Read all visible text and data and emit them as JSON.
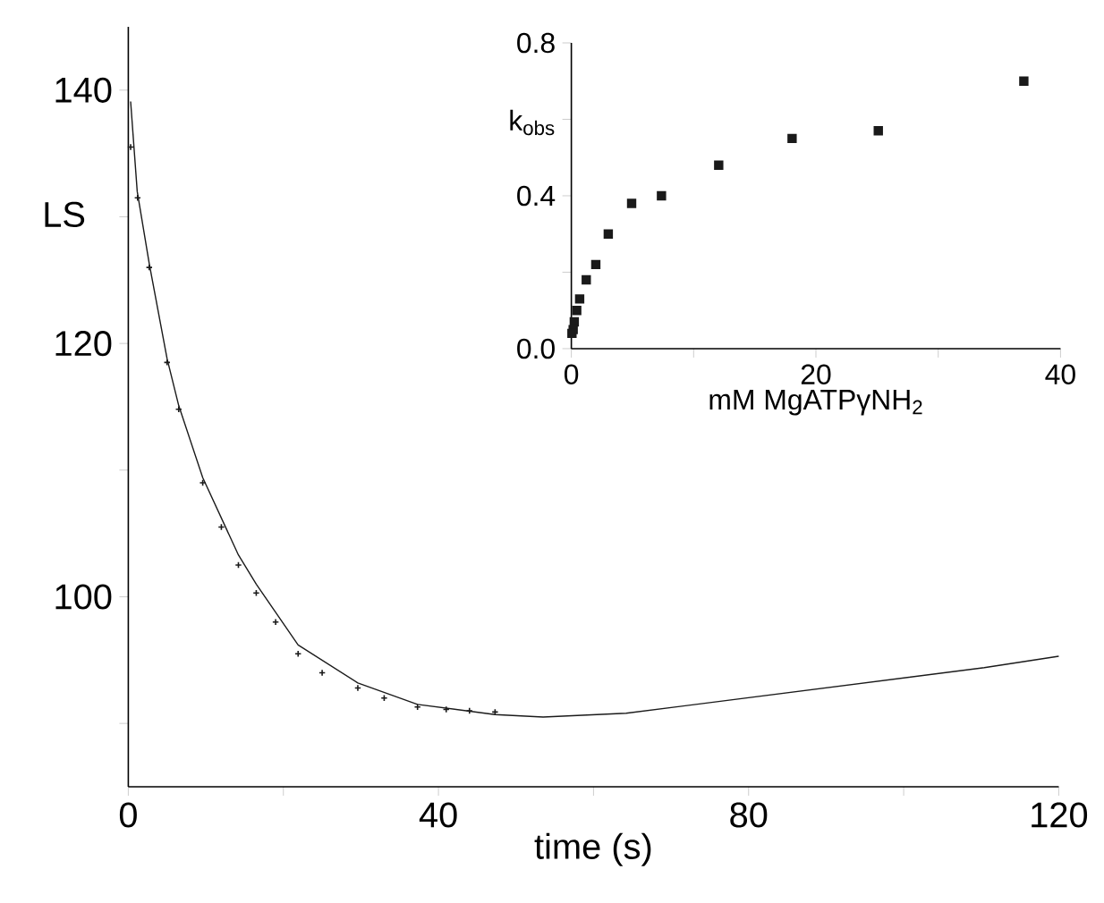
{
  "chart_data": [
    {
      "type": "line",
      "xlabel": "time (s)",
      "ylabel": "LS",
      "xlim": [
        0,
        120
      ],
      "ylim": [
        85,
        145
      ],
      "xticks": [
        0,
        {
          "value": 20,
          "label": null
        },
        40,
        {
          "value": 60,
          "label": null
        },
        80,
        {
          "value": 100,
          "label": null
        },
        120
      ],
      "yticks": [
        {
          "value": 90,
          "label": null
        },
        100,
        {
          "value": 110,
          "label": null
        },
        120,
        {
          "value": 130,
          "label": null
        },
        140
      ],
      "series": [
        {
          "type": "line",
          "color": "#1a1a1a",
          "x": [
            0.3,
            1.15,
            2.7,
            5.0,
            6.5,
            9.6,
            14.2,
            16.5,
            21.9,
            29.6,
            37.3,
            47.3,
            53.5,
            64.2,
            79.6,
            95,
            110.4,
            120
          ],
          "values": [
            139.1,
            132,
            126.3,
            118.8,
            115.1,
            109.4,
            103.3,
            101,
            96.2,
            93.2,
            91.5,
            90.7,
            90.5,
            90.8,
            92.0,
            93.2,
            94.4,
            95.3
          ]
        },
        {
          "type": "scatter",
          "marker": "cross",
          "color": "#1a1a1a",
          "x": [
            0.3,
            1.2,
            2.7,
            5.0,
            6.5,
            9.6,
            12,
            14.2,
            16.5,
            19,
            21.9,
            25,
            29.6,
            33,
            37.3,
            41,
            44,
            47.3
          ],
          "values": [
            135.5,
            131.5,
            126,
            118.5,
            114.8,
            109,
            105.5,
            102.5,
            100.3,
            98,
            95.5,
            94,
            92.8,
            92,
            91.3,
            91.1,
            91,
            90.9
          ]
        }
      ]
    },
    {
      "type": "scatter",
      "marker": "square",
      "xlabel": "mM MgATPγNH$_{2}$",
      "ylabel": "k$_{obs}$",
      "xlim": [
        0,
        40
      ],
      "ylim": [
        0,
        0.8
      ],
      "xticks": [
        0,
        {
          "value": 10,
          "label": null
        },
        20,
        {
          "value": 30,
          "label": null
        },
        40
      ],
      "yticks": [
        {
          "value": 0,
          "label": "0.0"
        },
        {
          "value": 0.2,
          "label": null
        },
        {
          "value": 0.4,
          "label": "0.4"
        },
        {
          "value": 0.6,
          "label": null
        },
        {
          "value": 0.8,
          "label": "0.8"
        }
      ],
      "series": [
        {
          "color": "#1a1a1a",
          "x": [
            37.0,
            25.1,
            18.05,
            12.05,
            7.37,
            4.93,
            3.02,
            2.0,
            1.22,
            0.68,
            0.44,
            0.24,
            0.15,
            0.05
          ],
          "values": [
            0.7,
            0.57,
            0.55,
            0.48,
            0.4,
            0.38,
            0.3,
            0.22,
            0.18,
            0.13,
            0.1,
            0.07,
            0.05,
            0.04
          ]
        }
      ]
    }
  ]
}
